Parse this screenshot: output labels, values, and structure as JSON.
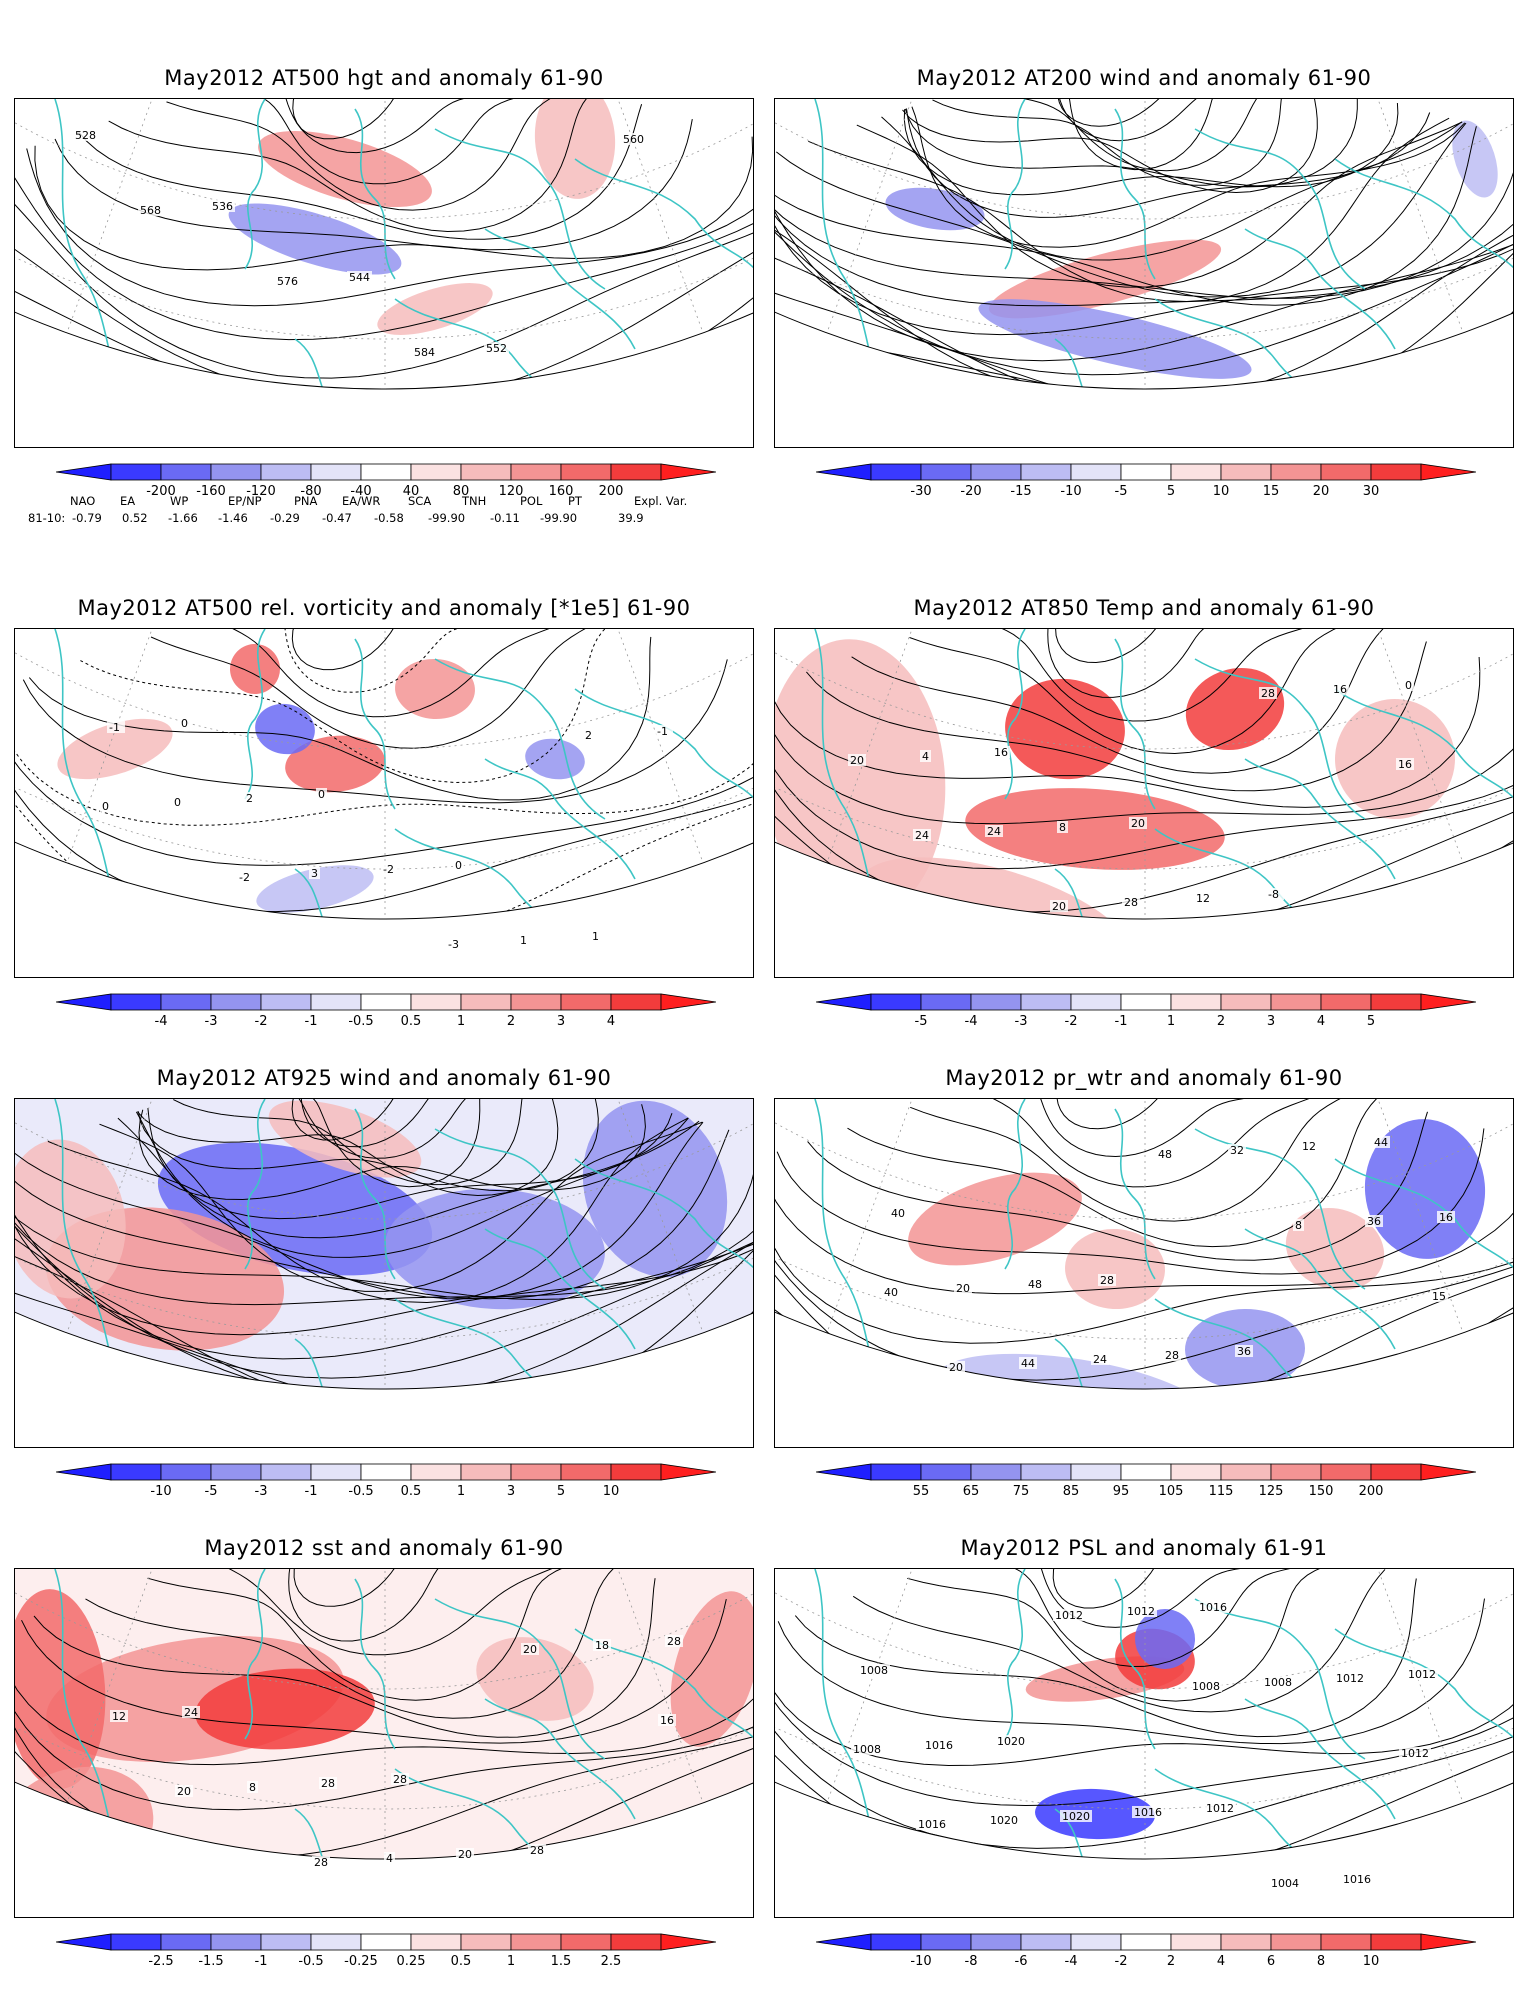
{
  "panels": [
    {
      "title": "May2012 AT500 hgt and anomaly 61-90",
      "ticks": [
        "-200",
        "-160",
        "-120",
        "-80",
        "-40",
        "40",
        "80",
        "120",
        "160",
        "200"
      ],
      "contour_labels": [
        "528",
        "536",
        "544",
        "552",
        "560",
        "568",
        "576",
        "584"
      ],
      "kind": "hgt"
    },
    {
      "title": "May2012 AT200 wind and anomaly 61-90",
      "ticks": [
        "-30",
        "-20",
        "-15",
        "-10",
        "-5",
        "5",
        "10",
        "15",
        "20",
        "30"
      ],
      "contour_labels": [],
      "kind": "stream"
    },
    {
      "title": "May2012 AT500 rel. vorticity and anomaly [*1e5] 61-90",
      "ticks": [
        "-4",
        "-3",
        "-2",
        "-1",
        "-0.5",
        "0.5",
        "1",
        "2",
        "3",
        "4"
      ],
      "contour_labels": [
        "0",
        "0",
        "0",
        "1",
        "-1",
        "2",
        "-2",
        "1",
        "-1",
        "0",
        "3",
        "-3",
        "2",
        "0",
        "-2"
      ],
      "kind": "vort"
    },
    {
      "title": "May2012 AT850 Temp and anomaly 61-90",
      "ticks": [
        "-5",
        "-4",
        "-3",
        "-2",
        "-1",
        "1",
        "2",
        "3",
        "4",
        "5"
      ],
      "contour_labels": [
        "16",
        "20",
        "-8",
        "0",
        "4",
        "8",
        "12",
        "16",
        "20",
        "24",
        "28",
        "28",
        "16",
        "24",
        "20"
      ],
      "kind": "temp"
    },
    {
      "title": "May2012 AT925 wind and anomaly 61-90",
      "ticks": [
        "-10",
        "-5",
        "-3",
        "-1",
        "-0.5",
        "0.5",
        "1",
        "3",
        "5",
        "10"
      ],
      "contour_labels": [],
      "kind": "stream925"
    },
    {
      "title": "May2012 pr_wtr and anomaly 61-90",
      "ticks": [
        "55",
        "65",
        "75",
        "85",
        "95",
        "105",
        "115",
        "125",
        "150",
        "200"
      ],
      "contour_labels": [
        "28",
        "36",
        "44",
        "40",
        "48",
        "28",
        "12",
        "16",
        "20",
        "24",
        "32",
        "36",
        "40",
        "44",
        "48",
        "8",
        "15",
        "20"
      ],
      "kind": "prw"
    },
    {
      "title": "May2012 sst and anomaly 61-90",
      "ticks": [
        "-2.5",
        "-1.5",
        "-1",
        "-0.5",
        "-0.25",
        "0.25",
        "0.5",
        "1",
        "1.5",
        "2.5"
      ],
      "contour_labels": [
        "28",
        "28",
        "28",
        "24",
        "28",
        "20",
        "18",
        "12",
        "8",
        "4",
        "20",
        "16",
        "20",
        "28"
      ],
      "kind": "sst"
    },
    {
      "title": "May2012 PSL and anomaly 61-91",
      "ticks": [
        "-10",
        "-8",
        "-6",
        "-4",
        "-2",
        "2",
        "4",
        "6",
        "8",
        "10"
      ],
      "contour_labels": [
        "1012",
        "1016",
        "1008",
        "1020",
        "1016",
        "1004",
        "1012",
        "1016",
        "1020",
        "1016",
        "1012",
        "1008",
        "1020",
        "1012",
        "1008",
        "1012",
        "1016",
        "1012",
        "1008"
      ],
      "kind": "psl"
    }
  ],
  "teleconnection": {
    "headers": [
      "NAO",
      "EA",
      "WP",
      "EP/NP",
      "PNA",
      "EA/WR",
      "SCA",
      "TNH",
      "POL",
      "PT",
      "Expl. Var."
    ],
    "row_label": "81-10:",
    "values": [
      "-0.79",
      "0.52",
      "-1.66",
      "-1.46",
      "-0.29",
      "-0.47",
      "-0.58",
      "-99.90",
      "-0.11",
      "-99.90",
      "39.9"
    ]
  },
  "colors": {
    "blue_scale": [
      "#3a3aff",
      "#6a6af5",
      "#9494f0",
      "#bdbdf3",
      "#e3e3f8"
    ],
    "red_scale": [
      "#fbe2e2",
      "#f6bcbc",
      "#f39494",
      "#f26a6a",
      "#f23c3c"
    ],
    "coast": "#3ec5c5"
  }
}
